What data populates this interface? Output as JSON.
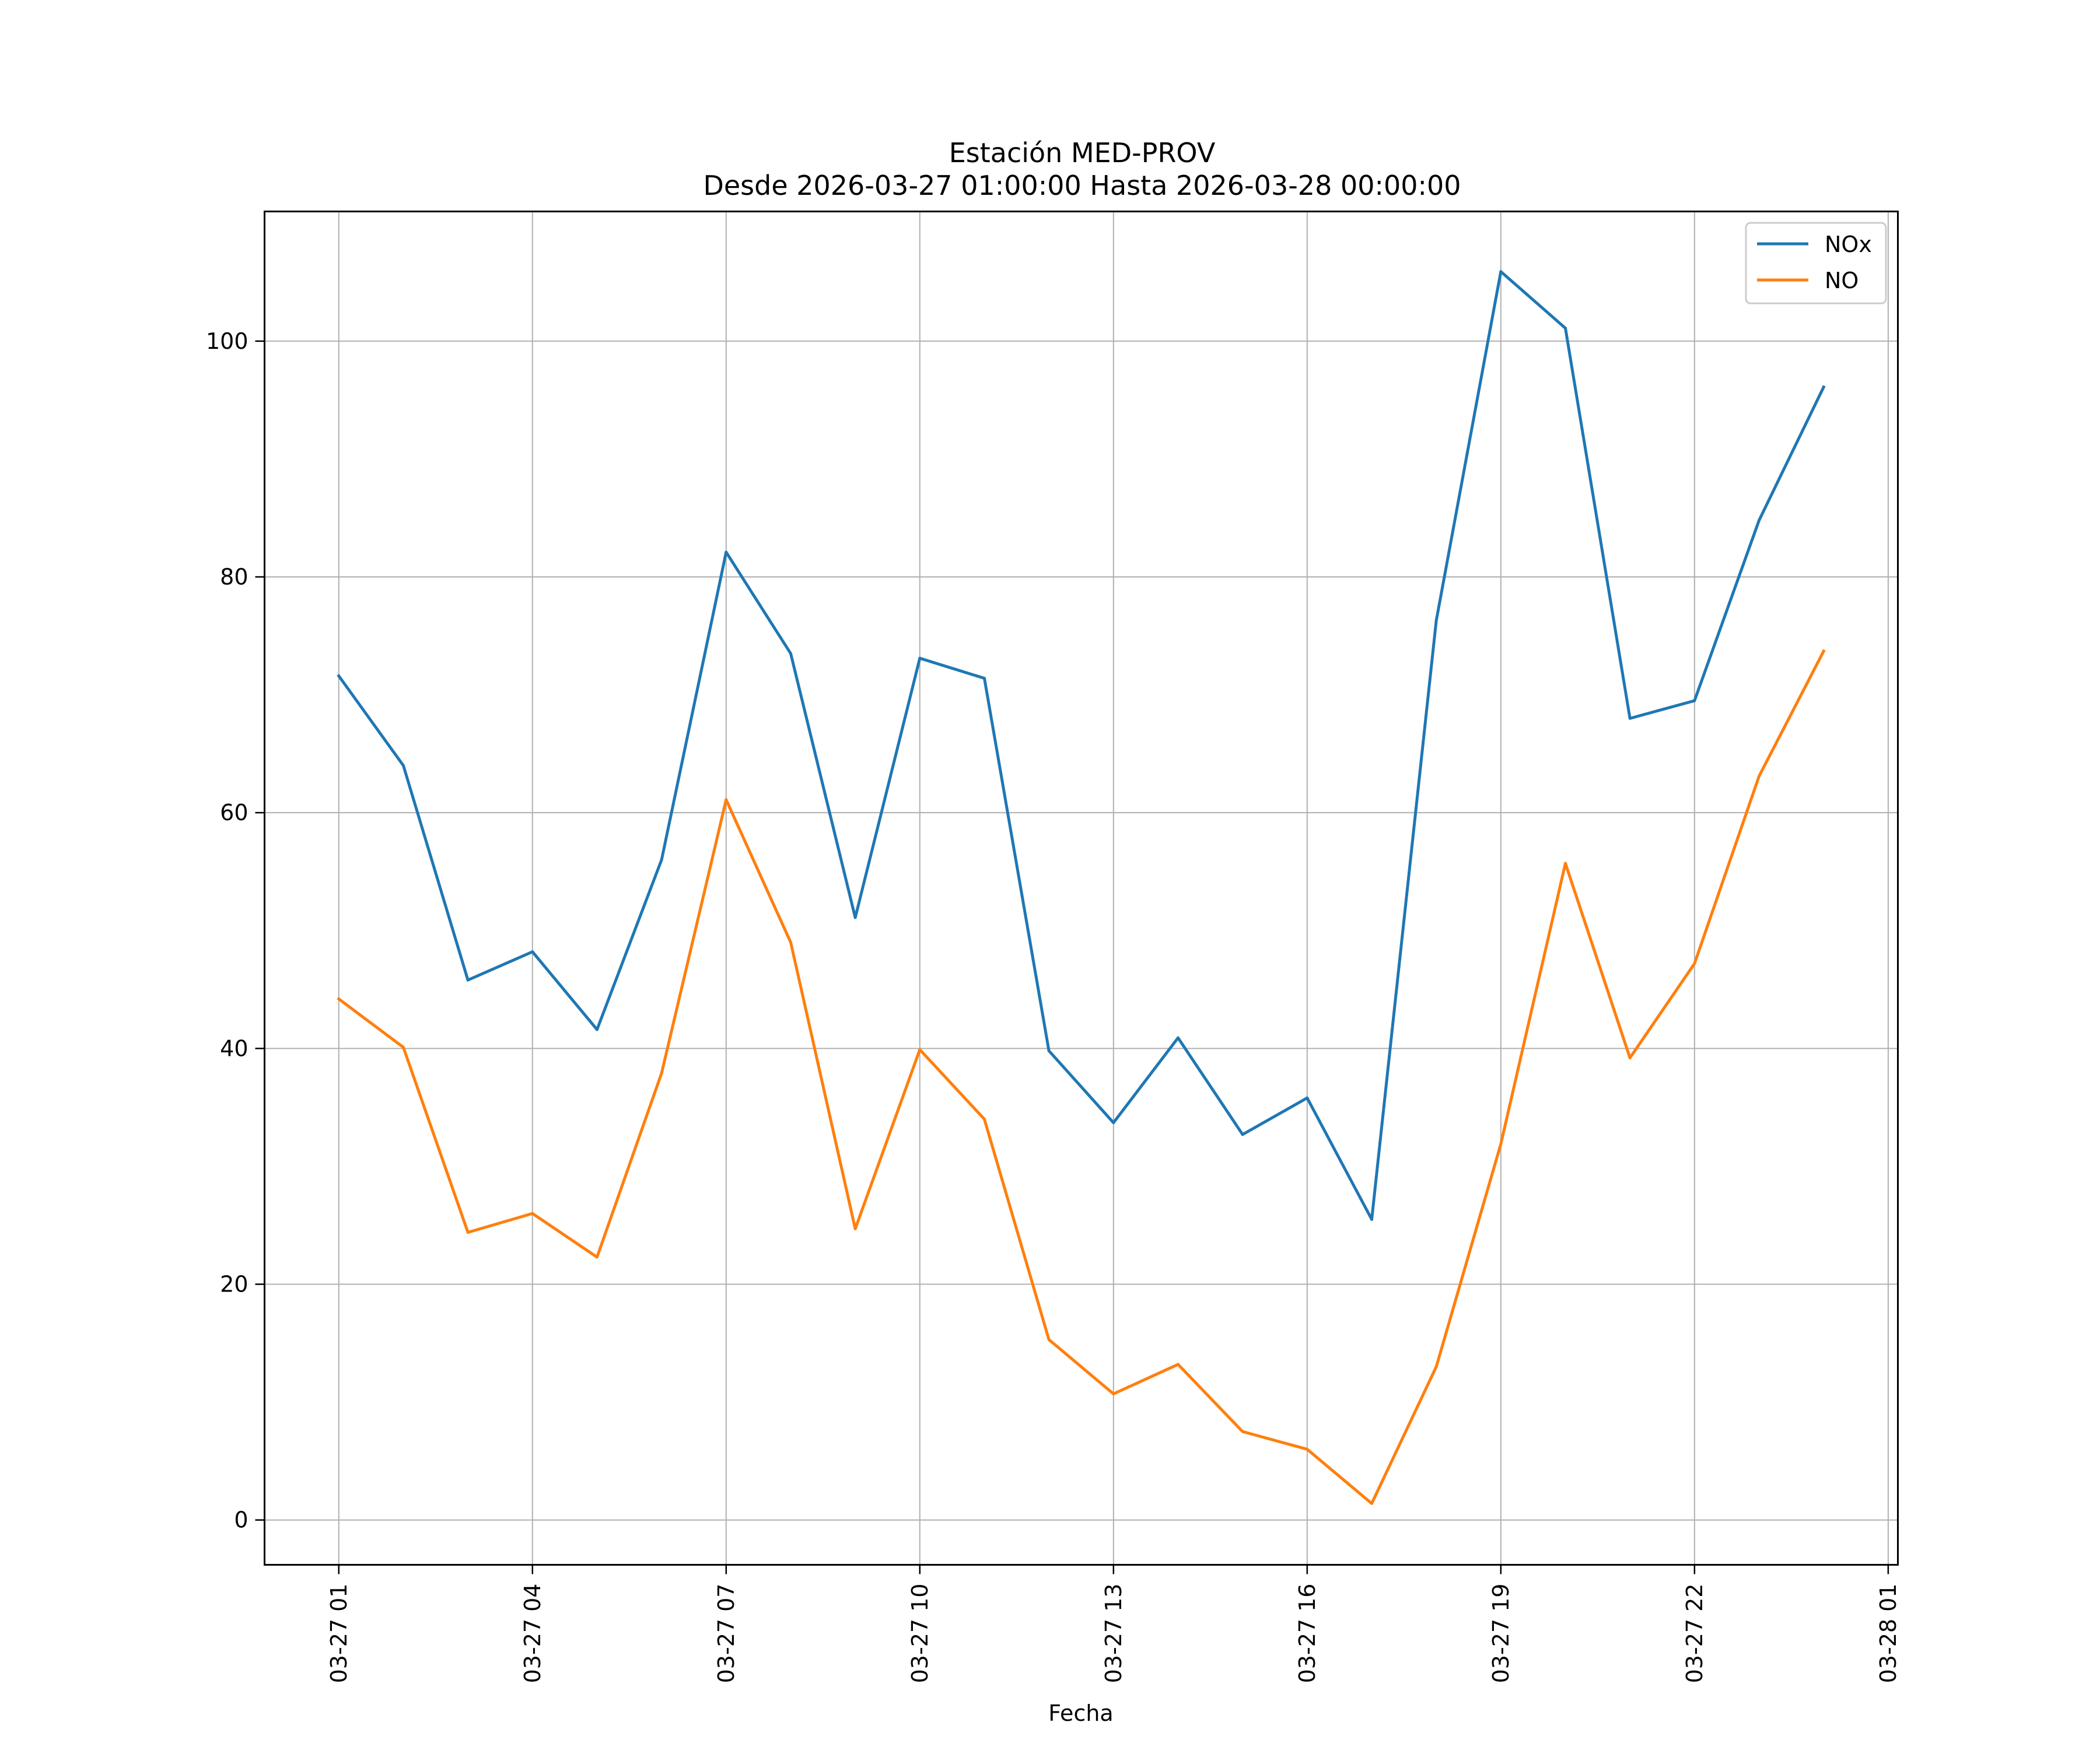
{
  "chart_data": {
    "type": "line",
    "title": "Estación MED-PROV",
    "subtitle": "Desde 2026-03-27 01:00:00 Hasta 2026-03-28 00:00:00",
    "xlabel": "Fecha",
    "ylabel": "",
    "x": [
      "03-27 01",
      "03-27 02",
      "03-27 03",
      "03-27 04",
      "03-27 05",
      "03-27 06",
      "03-27 07",
      "03-27 08",
      "03-27 09",
      "03-27 10",
      "03-27 11",
      "03-27 12",
      "03-27 13",
      "03-27 14",
      "03-27 15",
      "03-27 16",
      "03-27 17",
      "03-27 18",
      "03-27 19",
      "03-27 20",
      "03-27 21",
      "03-27 22",
      "03-27 23",
      "03-28 00"
    ],
    "x_hours": [
      1,
      2,
      3,
      4,
      5,
      6,
      7,
      8,
      9,
      10,
      11,
      12,
      13,
      14,
      15,
      16,
      17,
      18,
      19,
      20,
      21,
      22,
      23,
      24
    ],
    "xlim_hours": [
      -0.15,
      25.15
    ],
    "x_ticks": [
      {
        "hour": 1,
        "label": "03-27 01"
      },
      {
        "hour": 4,
        "label": "03-27 04"
      },
      {
        "hour": 7,
        "label": "03-27 07"
      },
      {
        "hour": 10,
        "label": "03-27 10"
      },
      {
        "hour": 13,
        "label": "03-27 13"
      },
      {
        "hour": 16,
        "label": "03-27 16"
      },
      {
        "hour": 19,
        "label": "03-27 19"
      },
      {
        "hour": 22,
        "label": "03-27 22"
      },
      {
        "hour": 25,
        "label": "03-28 01"
      }
    ],
    "ylim": [
      -3.8,
      111
    ],
    "y_ticks": [
      0,
      20,
      40,
      60,
      80,
      100
    ],
    "grid": true,
    "legend_position": "top-right",
    "series": [
      {
        "name": "NOx",
        "color": "#1f77b4",
        "values": [
          71.6,
          64.0,
          45.8,
          48.2,
          41.6,
          56.0,
          82.1,
          73.5,
          51.1,
          73.1,
          71.4,
          39.8,
          33.7,
          40.9,
          32.7,
          35.8,
          25.5,
          76.3,
          105.9,
          101.1,
          68.0,
          69.5,
          84.8,
          96.1
        ]
      },
      {
        "name": "NO",
        "color": "#ff7f0e",
        "values": [
          44.2,
          40.1,
          24.4,
          26.0,
          22.3,
          37.9,
          61.1,
          49.0,
          24.7,
          39.9,
          34.0,
          15.3,
          10.7,
          13.2,
          7.5,
          6.0,
          1.4,
          13.0,
          31.9,
          55.7,
          39.2,
          47.2,
          63.1,
          73.7
        ]
      }
    ]
  }
}
